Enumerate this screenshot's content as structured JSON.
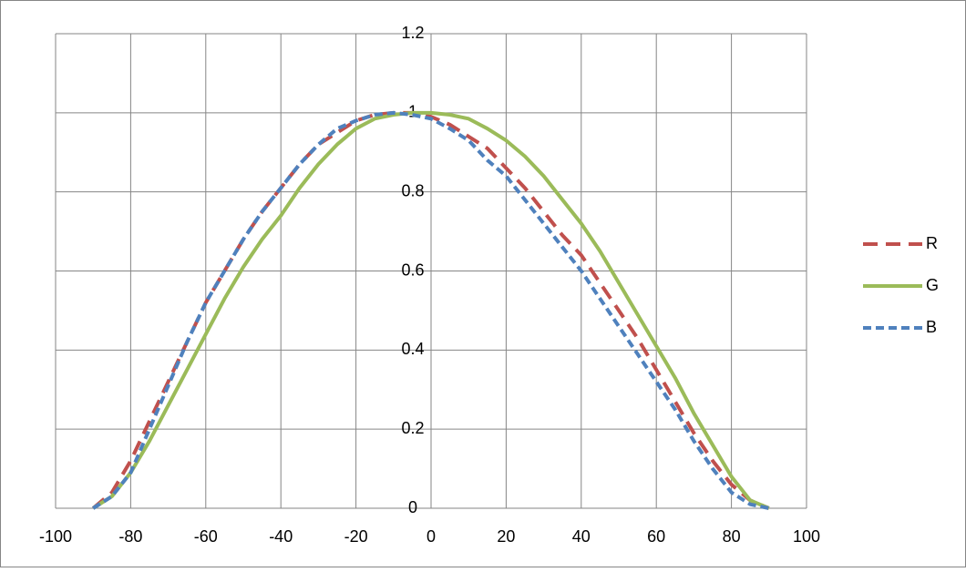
{
  "chart_data": {
    "type": "line",
    "x": [
      -90,
      -85,
      -80,
      -75,
      -70,
      -65,
      -60,
      -55,
      -50,
      -45,
      -40,
      -35,
      -30,
      -25,
      -20,
      -15,
      -10,
      -5,
      0,
      5,
      10,
      15,
      20,
      25,
      30,
      35,
      40,
      45,
      50,
      55,
      60,
      65,
      70,
      75,
      80,
      85,
      90
    ],
    "series": [
      {
        "name": "R",
        "color": "#c0504d",
        "dash": "dashed",
        "values": [
          0,
          0.04,
          0.12,
          0.22,
          0.32,
          0.42,
          0.52,
          0.6,
          0.68,
          0.75,
          0.81,
          0.87,
          0.92,
          0.95,
          0.98,
          0.995,
          1.0,
          1.0,
          0.99,
          0.97,
          0.94,
          0.91,
          0.86,
          0.81,
          0.75,
          0.69,
          0.64,
          0.57,
          0.5,
          0.43,
          0.35,
          0.27,
          0.19,
          0.12,
          0.06,
          0.02,
          0
        ]
      },
      {
        "name": "G",
        "color": "#9bbb59",
        "dash": "solid",
        "values": [
          0,
          0.03,
          0.09,
          0.17,
          0.26,
          0.35,
          0.44,
          0.53,
          0.61,
          0.68,
          0.74,
          0.81,
          0.87,
          0.92,
          0.96,
          0.985,
          0.995,
          1.0,
          1.0,
          0.995,
          0.985,
          0.96,
          0.93,
          0.89,
          0.84,
          0.78,
          0.72,
          0.65,
          0.57,
          0.49,
          0.41,
          0.33,
          0.24,
          0.16,
          0.08,
          0.02,
          0
        ]
      },
      {
        "name": "B",
        "color": "#4f81bd",
        "dash": "dotted",
        "values": [
          0,
          0.03,
          0.09,
          0.2,
          0.31,
          0.42,
          0.52,
          0.6,
          0.68,
          0.75,
          0.81,
          0.87,
          0.92,
          0.96,
          0.98,
          0.995,
          1.0,
          0.995,
          0.985,
          0.96,
          0.93,
          0.88,
          0.84,
          0.78,
          0.72,
          0.66,
          0.6,
          0.53,
          0.46,
          0.39,
          0.32,
          0.25,
          0.17,
          0.1,
          0.04,
          0.01,
          0
        ]
      }
    ],
    "xlim": [
      -100,
      100
    ],
    "xticks": [
      -100,
      -80,
      -60,
      -40,
      -20,
      0,
      20,
      40,
      60,
      80,
      100
    ],
    "ylim": [
      0,
      1.2
    ],
    "yticks": [
      0,
      0.2,
      0.4,
      0.6,
      0.8,
      1,
      1.2
    ],
    "grid": true,
    "legend": "right"
  }
}
